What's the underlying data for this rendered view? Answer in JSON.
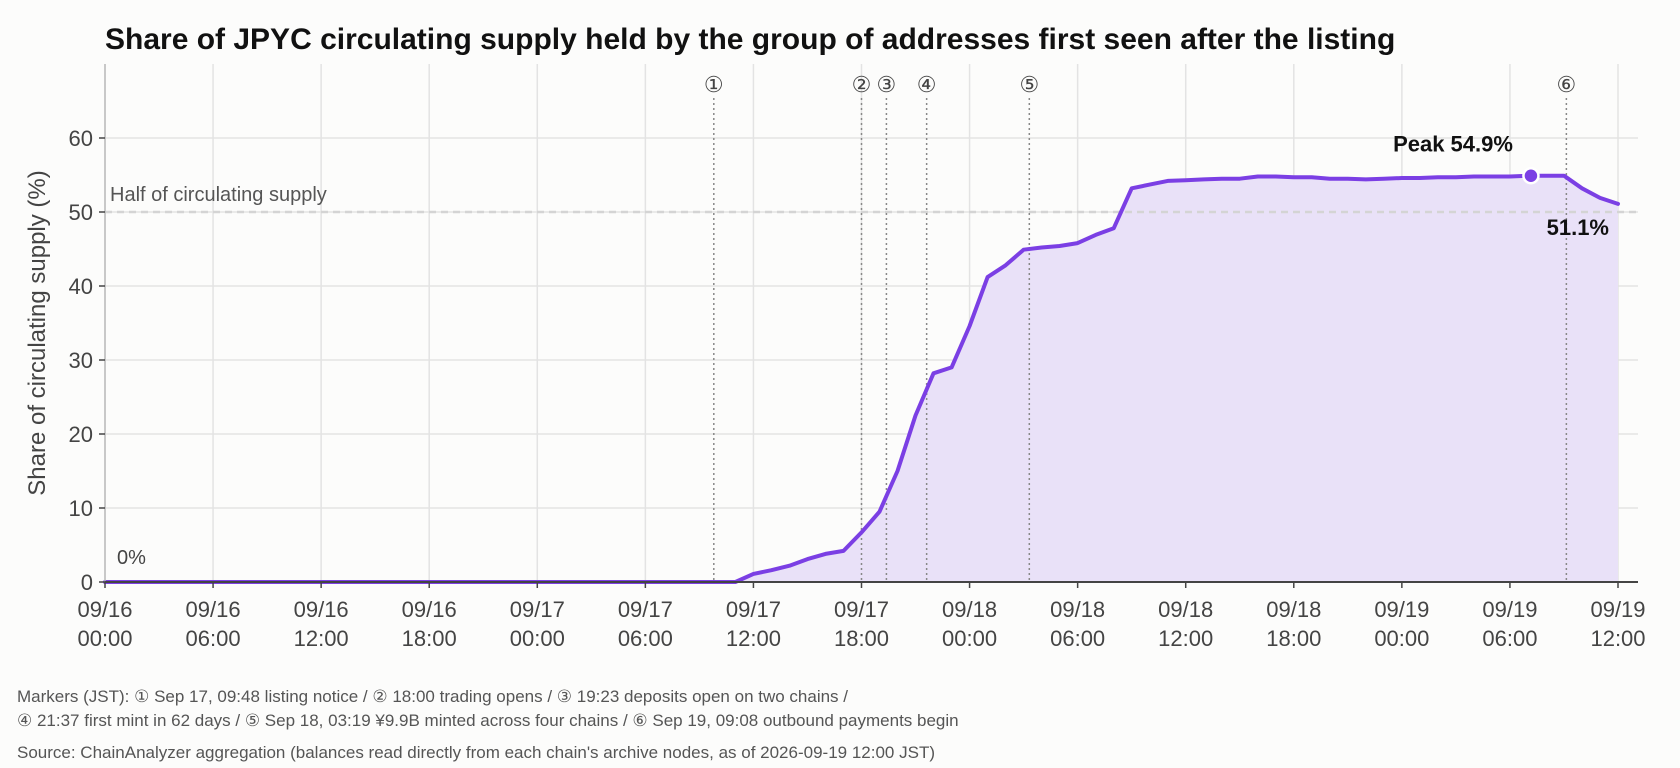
{
  "chart_data": {
    "type": "area",
    "title": "Share of JPYC circulating supply held by the group of addresses first seen after the listing",
    "ylabel": "Share of circulating supply (%)",
    "xlabel": "",
    "ylim": [
      0,
      70
    ],
    "y_ticks": [
      0,
      10,
      20,
      30,
      40,
      50,
      60
    ],
    "xlim": [
      "2026-09-16 00:00",
      "2026-09-19 12:00"
    ],
    "x_ticks": [
      {
        "t": "2026-09-16 00:00",
        "date": "09/16",
        "time": "00:00"
      },
      {
        "t": "2026-09-16 06:00",
        "date": "09/16",
        "time": "06:00"
      },
      {
        "t": "2026-09-16 12:00",
        "date": "09/16",
        "time": "12:00"
      },
      {
        "t": "2026-09-16 18:00",
        "date": "09/16",
        "time": "18:00"
      },
      {
        "t": "2026-09-17 00:00",
        "date": "09/17",
        "time": "00:00"
      },
      {
        "t": "2026-09-17 06:00",
        "date": "09/17",
        "time": "06:00"
      },
      {
        "t": "2026-09-17 12:00",
        "date": "09/17",
        "time": "12:00"
      },
      {
        "t": "2026-09-17 18:00",
        "date": "09/17",
        "time": "18:00"
      },
      {
        "t": "2026-09-18 00:00",
        "date": "09/18",
        "time": "00:00"
      },
      {
        "t": "2026-09-18 06:00",
        "date": "09/18",
        "time": "06:00"
      },
      {
        "t": "2026-09-18 12:00",
        "date": "09/18",
        "time": "12:00"
      },
      {
        "t": "2026-09-18 18:00",
        "date": "09/18",
        "time": "18:00"
      },
      {
        "t": "2026-09-19 00:00",
        "date": "09/19",
        "time": "00:00"
      },
      {
        "t": "2026-09-19 06:00",
        "date": "09/19",
        "time": "06:00"
      },
      {
        "t": "2026-09-19 12:00",
        "date": "09/19",
        "time": "12:00"
      }
    ],
    "grid": true,
    "series": [
      {
        "color": "#7b3fe4",
        "fill": "#e9e1f8",
        "points": [
          [
            "2026-09-16 00:00",
            0
          ],
          [
            "2026-09-17 11:00",
            0
          ],
          [
            "2026-09-17 12:00",
            1.1
          ],
          [
            "2026-09-17 13:00",
            1.6
          ],
          [
            "2026-09-17 14:00",
            2.2
          ],
          [
            "2026-09-17 15:00",
            3.1
          ],
          [
            "2026-09-17 16:00",
            3.8
          ],
          [
            "2026-09-17 17:00",
            4.2
          ],
          [
            "2026-09-17 18:00",
            6.7
          ],
          [
            "2026-09-17 19:00",
            9.5
          ],
          [
            "2026-09-17 20:00",
            15.0
          ],
          [
            "2026-09-17 21:00",
            22.5
          ],
          [
            "2026-09-17 22:00",
            28.2
          ],
          [
            "2026-09-17 23:00",
            29.0
          ],
          [
            "2026-09-18 00:00",
            34.6
          ],
          [
            "2026-09-18 01:00",
            41.2
          ],
          [
            "2026-09-18 02:00",
            42.8
          ],
          [
            "2026-09-18 03:00",
            44.9
          ],
          [
            "2026-09-18 04:00",
            45.2
          ],
          [
            "2026-09-18 05:00",
            45.4
          ],
          [
            "2026-09-18 06:00",
            45.8
          ],
          [
            "2026-09-18 07:00",
            46.9
          ],
          [
            "2026-09-18 08:00",
            47.8
          ],
          [
            "2026-09-18 09:00",
            53.2
          ],
          [
            "2026-09-18 10:00",
            53.7
          ],
          [
            "2026-09-18 11:00",
            54.2
          ],
          [
            "2026-09-18 12:00",
            54.3
          ],
          [
            "2026-09-18 13:00",
            54.4
          ],
          [
            "2026-09-18 14:00",
            54.5
          ],
          [
            "2026-09-18 15:00",
            54.5
          ],
          [
            "2026-09-18 16:00",
            54.8
          ],
          [
            "2026-09-18 17:00",
            54.8
          ],
          [
            "2026-09-18 18:00",
            54.7
          ],
          [
            "2026-09-18 19:00",
            54.7
          ],
          [
            "2026-09-18 20:00",
            54.5
          ],
          [
            "2026-09-18 21:00",
            54.5
          ],
          [
            "2026-09-18 22:00",
            54.4
          ],
          [
            "2026-09-18 23:00",
            54.5
          ],
          [
            "2026-09-19 00:00",
            54.6
          ],
          [
            "2026-09-19 01:00",
            54.6
          ],
          [
            "2026-09-19 02:00",
            54.7
          ],
          [
            "2026-09-19 03:00",
            54.7
          ],
          [
            "2026-09-19 04:00",
            54.8
          ],
          [
            "2026-09-19 05:00",
            54.8
          ],
          [
            "2026-09-19 06:00",
            54.8
          ],
          [
            "2026-09-19 07:00",
            54.9
          ],
          [
            "2026-09-19 08:00",
            54.9
          ],
          [
            "2026-09-19 09:00",
            54.9
          ],
          [
            "2026-09-19 10:00",
            53.2
          ],
          [
            "2026-09-19 11:00",
            51.9
          ],
          [
            "2026-09-19 12:00",
            51.1
          ]
        ]
      }
    ],
    "peak": {
      "t": "2026-09-19 07:10",
      "value": 54.9,
      "label": "Peak 54.9%"
    },
    "end_label": {
      "t": "2026-09-19 12:00",
      "value": 51.1,
      "label": "51.1%"
    },
    "start_label": {
      "t": "2026-09-16 00:00",
      "value": 0,
      "label": "0%"
    },
    "reference_line": {
      "value": 50,
      "label": "Half of circulating supply",
      "color": "#d4d4d4"
    },
    "markers": [
      {
        "id": "①",
        "t": "2026-09-17 09:48"
      },
      {
        "id": "②",
        "t": "2026-09-17 18:00"
      },
      {
        "id": "③",
        "t": "2026-09-17 19:23"
      },
      {
        "id": "④",
        "t": "2026-09-17 21:37"
      },
      {
        "id": "⑤",
        "t": "2026-09-18 03:19"
      },
      {
        "id": "⑥",
        "t": "2026-09-19 09:08"
      }
    ]
  },
  "notes": {
    "markers_line1": "Markers (JST): ① Sep 17, 09:48 listing notice / ② 18:00 trading opens / ③ 19:23 deposits open on two chains /",
    "markers_line2": "④ 21:37 first mint in 62 days / ⑤ Sep 18, 03:19 ¥9.9B minted across four chains / ⑥ Sep 19, 09:08 outbound payments begin",
    "source": "Source: ChainAnalyzer aggregation (balances read directly from each chain's archive nodes, as of 2026-09-19 12:00 JST)"
  }
}
